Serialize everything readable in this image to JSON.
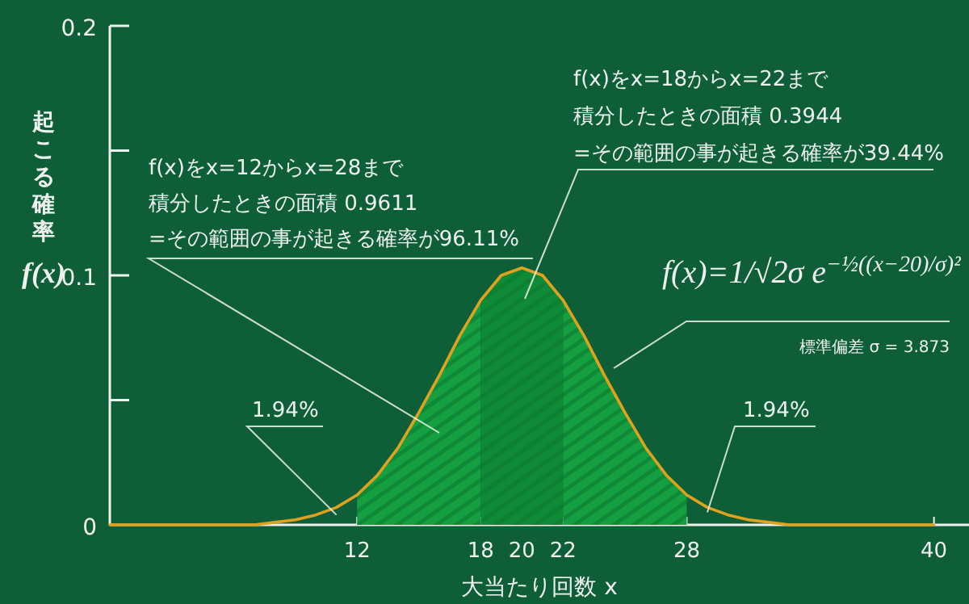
{
  "chart_data": {
    "type": "line",
    "xlabel": "大当たり回数 x",
    "ylabel": "起こる確率\nf(x)",
    "xlim": [
      0,
      41.7
    ],
    "ylim": [
      0,
      0.2
    ],
    "xticks": [
      12,
      18,
      20,
      22,
      28,
      40
    ],
    "yticks": [
      0,
      {
        "value": 0.05,
        "label": null
      },
      0.1,
      {
        "value": 0.15,
        "label": null
      },
      0.2
    ],
    "series": [
      {
        "type": "area",
        "color": "#14a040",
        "x": [
          12,
          13,
          14,
          15,
          16,
          17,
          18
        ],
        "values": [
          0.012,
          0.02,
          0.031,
          0.045,
          0.06,
          0.076,
          0.09
        ]
      },
      {
        "type": "area",
        "color": "#0f8a36",
        "x": [
          18,
          19,
          20,
          21,
          22
        ],
        "values": [
          0.09,
          0.1,
          0.103,
          0.1,
          0.09
        ]
      },
      {
        "type": "area",
        "color": "#14a040",
        "x": [
          22,
          23,
          24,
          25,
          26,
          27,
          28
        ],
        "values": [
          0.09,
          0.076,
          0.06,
          0.045,
          0.031,
          0.02,
          0.012
        ]
      },
      {
        "color": "#e0a11e",
        "x": [
          0,
          1,
          2,
          3,
          4,
          5,
          6,
          7,
          8,
          9,
          10,
          11,
          12,
          13,
          14,
          15,
          16,
          17,
          18,
          19,
          20,
          21,
          22,
          23,
          24,
          25,
          26,
          27,
          28,
          29,
          30,
          31,
          32,
          33,
          34,
          35,
          36,
          37,
          38,
          39,
          40
        ],
        "values": [
          0,
          0,
          0,
          0,
          0,
          0,
          0,
          0,
          0.001,
          0.002,
          0.004,
          0.007,
          0.012,
          0.02,
          0.031,
          0.045,
          0.06,
          0.076,
          0.09,
          0.1,
          0.103,
          0.1,
          0.09,
          0.076,
          0.06,
          0.045,
          0.031,
          0.02,
          0.012,
          0.007,
          0.004,
          0.002,
          0.001,
          0,
          0,
          0,
          0,
          0,
          0,
          0,
          0
        ]
      }
    ],
    "annotations": [
      "f(x)をx=12からx=28まで",
      "積分したときの面積 0.9611",
      "=その範囲の事が起きる確率が96.11%",
      "f(x)をx=18からx=22まで",
      "積分したときの面積 0.3944",
      "=その範囲の事が起きる確率が39.44%",
      "f(x)=1/√2σ e$^{−½((x−20)/σ)²}$",
      "標準偏差 σ = 3.873",
      {
        "text": "1.94%",
        "x": 11,
        "y": 0.004
      },
      {
        "text": "1.94%",
        "x": 29,
        "y": 0.005
      }
    ]
  }
}
